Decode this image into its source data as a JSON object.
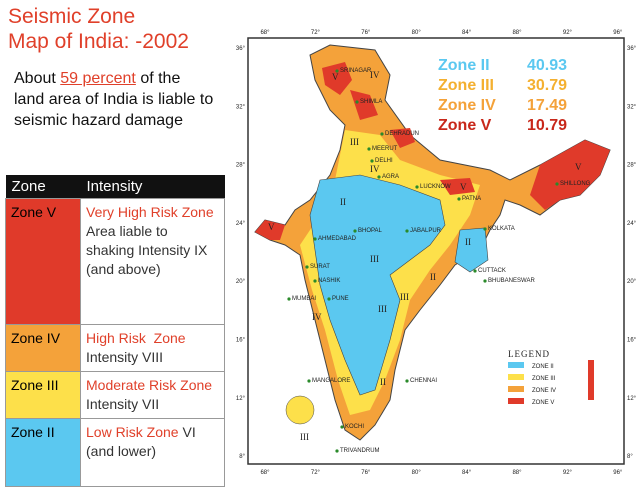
{
  "title_lines": [
    "Seismic Zone",
    "Map of India: -2002"
  ],
  "intro": {
    "before": "About ",
    "highlight": "59 percent",
    "after": " of the land area of India is liable to seismic hazard damage"
  },
  "table": {
    "header": [
      "Zone",
      "Intensity"
    ],
    "rows": [
      {
        "zone": "Zone V",
        "risk": "Very High Risk Zone",
        "detail": "Area liable to shaking Intensity IX (and above)"
      },
      {
        "zone": "Zone IV",
        "risk": "High Risk  Zone",
        "detail": "Intensity VIII"
      },
      {
        "zone": "Zone III",
        "risk": "Moderate Risk Zone",
        "detail": "Intensity VII"
      },
      {
        "zone": "Zone II",
        "risk": "Low Risk Zone",
        "detail": "VI (and lower)"
      }
    ]
  },
  "zone_shares": [
    {
      "zone": "Zone II",
      "percent": 40.93
    },
    {
      "zone": "Zone III",
      "percent": 30.79
    },
    {
      "zone": "Zone IV",
      "percent": 17.49
    },
    {
      "zone": "Zone V",
      "percent": 10.79
    }
  ],
  "legend": {
    "title": "LEGEND",
    "items": [
      "ZONE II",
      "ZONE III",
      "ZONE IV",
      "ZONE V"
    ]
  },
  "map": {
    "lon_ticks": [
      "68°",
      "72°",
      "76°",
      "80°",
      "84°",
      "88°",
      "92°",
      "96°"
    ],
    "lat_ticks": [
      "36°",
      "32°",
      "28°",
      "24°",
      "20°",
      "16°",
      "12°",
      "8°"
    ],
    "cities": [
      "SRINAGAR",
      "SHIMLA",
      "DEHRADUN",
      "MEERUT",
      "DELHI",
      "AGRA",
      "LUCKNOW",
      "PATNA",
      "KOLKATA",
      "SHILLONG",
      "AHMEDABAD",
      "BHOPAL",
      "JABALPUR",
      "SURAT",
      "NASHIK",
      "MUMBAI",
      "PUNE",
      "CUTTACK",
      "BHUBANESWAR",
      "CHENNAI",
      "MANGALORE",
      "KOCHI",
      "TRIVANDRUM"
    ],
    "zone_marks": [
      "V",
      "IV",
      "III",
      "IV",
      "II",
      "V",
      "V",
      "II",
      "III",
      "II",
      "III",
      "IV",
      "III",
      "II",
      "V",
      "III"
    ]
  }
}
